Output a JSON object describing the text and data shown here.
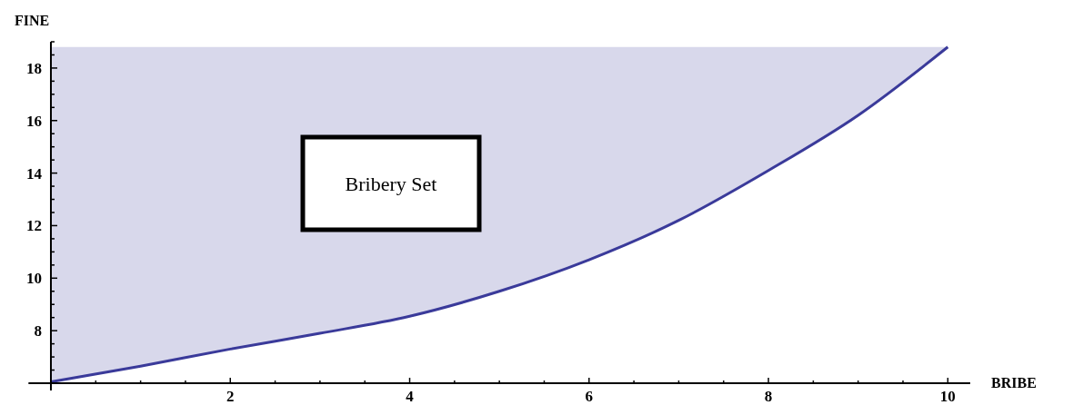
{
  "chart_data": {
    "type": "line",
    "xlabel": "BRIBE",
    "ylabel": "FINE",
    "x": [
      0,
      1,
      2,
      3,
      4,
      5,
      6,
      7,
      8,
      9,
      10
    ],
    "series": [
      {
        "color": "#3a3a9a",
        "values": [
          6.05,
          6.65,
          7.3,
          7.9,
          8.55,
          9.5,
          10.7,
          12.2,
          14.1,
          16.2,
          18.8
        ],
        "lower": [
          6.05,
          6.65,
          7.3,
          7.9,
          8.55,
          9.5,
          10.7,
          12.2,
          14.1,
          16.2,
          18.8
        ],
        "upper": [
          18.8,
          18.8,
          18.8,
          18.8,
          18.8,
          18.8,
          18.8,
          18.8,
          18.8,
          18.8,
          18.8
        ]
      }
    ],
    "xlim": [
      -0.25,
      10.25
    ],
    "ylim": [
      6,
      19
    ],
    "xticks": [
      {
        "value": 0.5,
        "label": null
      },
      {
        "value": 1,
        "label": null
      },
      {
        "value": 1.5,
        "label": null
      },
      2,
      {
        "value": 2.5,
        "label": null
      },
      {
        "value": 3,
        "label": null
      },
      {
        "value": 3.5,
        "label": null
      },
      4,
      {
        "value": 4.5,
        "label": null
      },
      {
        "value": 5,
        "label": null
      },
      {
        "value": 5.5,
        "label": null
      },
      6,
      {
        "value": 6.5,
        "label": null
      },
      {
        "value": 7,
        "label": null
      },
      {
        "value": 7.5,
        "label": null
      },
      8,
      {
        "value": 8.5,
        "label": null
      },
      {
        "value": 9,
        "label": null
      },
      {
        "value": 9.5,
        "label": null
      },
      10
    ],
    "yticks": [
      {
        "value": 6.5,
        "label": null
      },
      {
        "value": 7,
        "label": null
      },
      {
        "value": 7.5,
        "label": null
      },
      8,
      {
        "value": 8.5,
        "label": null
      },
      {
        "value": 9,
        "label": null
      },
      {
        "value": 9.5,
        "label": null
      },
      10,
      {
        "value": 10.5,
        "label": null
      },
      {
        "value": 11,
        "label": null
      },
      {
        "value": 11.5,
        "label": null
      },
      12,
      {
        "value": 12.5,
        "label": null
      },
      {
        "value": 13,
        "label": null
      },
      {
        "value": 13.5,
        "label": null
      },
      14,
      {
        "value": 14.5,
        "label": null
      },
      {
        "value": 15,
        "label": null
      },
      {
        "value": 15.5,
        "label": null
      },
      16,
      {
        "value": 16.5,
        "label": null
      },
      {
        "value": 17,
        "label": null
      },
      {
        "value": 17.5,
        "label": null
      },
      18,
      {
        "value": 18.5,
        "label": null
      },
      {
        "value": 19,
        "label": null
      }
    ],
    "annotations": [
      "Bribery Set"
    ],
    "grid": false
  }
}
